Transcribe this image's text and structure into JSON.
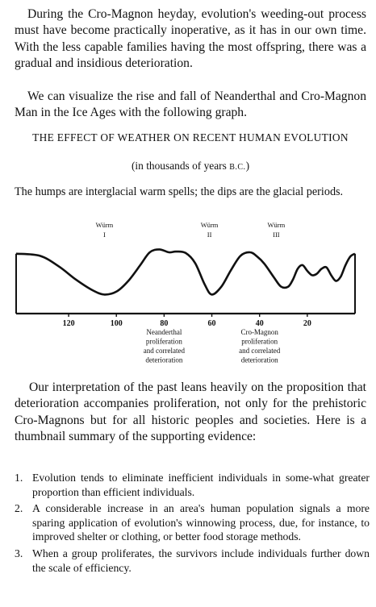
{
  "paragraphs": {
    "p1": "During the Cro-Magnon heyday, evolution's weeding-out process must have become practically inoperative, as it has in our own time. With the less capable families having the most offspring, there was a gradual and insidious deterioration.",
    "p2": "We can visualize the rise and fall of Neanderthal and Cro-Magnon Man in the Ice Ages with the following graph.",
    "p3": "Our interpretation of the past leans heavily on the proposition that deterioration accompanies proliferation, not only for the prehistoric Cro-Magnons but for all historic peoples and societies. Here is a thumbnail summary of the supporting evidence:"
  },
  "figure": {
    "title": "THE EFFECT OF WEATHER ON RECENT HUMAN EVOLUTION",
    "subtitle_prefix": "(in thousands of years ",
    "subtitle_unit": "B.C.",
    "subtitle_suffix": ")",
    "caption": "The humps are interglacial warm spells; the dips are the glacial periods."
  },
  "chart_data": {
    "type": "line",
    "x_axis": {
      "direction": "descending",
      "ticks": [
        "120",
        "100",
        "80",
        "60",
        "40",
        "20"
      ]
    },
    "glacial_labels": [
      {
        "name": "Würm",
        "numeral": "I",
        "at": 105
      },
      {
        "name": "Würm",
        "numeral": "II",
        "at": 61
      },
      {
        "name": "Würm",
        "numeral": "III",
        "at": 33
      }
    ],
    "annotations": [
      {
        "lines": [
          "Neanderthal",
          "proliferation",
          "and correlated",
          "deterioration"
        ],
        "at": 80
      },
      {
        "lines": [
          "Cro-Magnon",
          "proliferation",
          "and correlated",
          "deterioration"
        ],
        "at": 40
      }
    ],
    "curve": {
      "x": [
        142,
        132,
        124,
        117,
        110,
        105,
        100,
        95,
        90,
        86,
        82,
        78,
        75,
        71,
        67,
        63,
        60,
        56,
        52,
        48,
        44,
        41,
        38,
        34,
        31,
        28,
        26,
        24,
        22,
        20,
        18,
        16,
        14,
        12,
        10,
        8,
        6,
        4,
        2,
        0
      ],
      "y": [
        7.8,
        7.5,
        6.0,
        4.2,
        2.7,
        2.1,
        2.5,
        4.0,
        6.2,
        8.0,
        8.4,
        8.0,
        8.1,
        7.9,
        6.5,
        3.5,
        2.1,
        3.2,
        5.5,
        7.5,
        8.0,
        7.4,
        6.4,
        4.5,
        3.2,
        3.2,
        4.2,
        5.7,
        6.2,
        5.4,
        4.8,
        5.0,
        5.7,
        5.9,
        4.8,
        4.0,
        4.6,
        6.2,
        7.4,
        7.8
      ],
      "y_unit": "relative (warm = high, glacial = low)"
    }
  },
  "evidence": [
    {
      "num": "1.",
      "text": "Evolution tends to eliminate inefficient individuals in some-what greater proportion than efficient individuals."
    },
    {
      "num": "2.",
      "text": "A considerable increase in an area's human population signals a more sparing application of evolution's winnowing process, due, for instance, to improved shelter or clothing, or better food storage methods."
    },
    {
      "num": "3.",
      "text": "When a group proliferates, the survivors include individuals further down the scale of efficiency."
    }
  ]
}
